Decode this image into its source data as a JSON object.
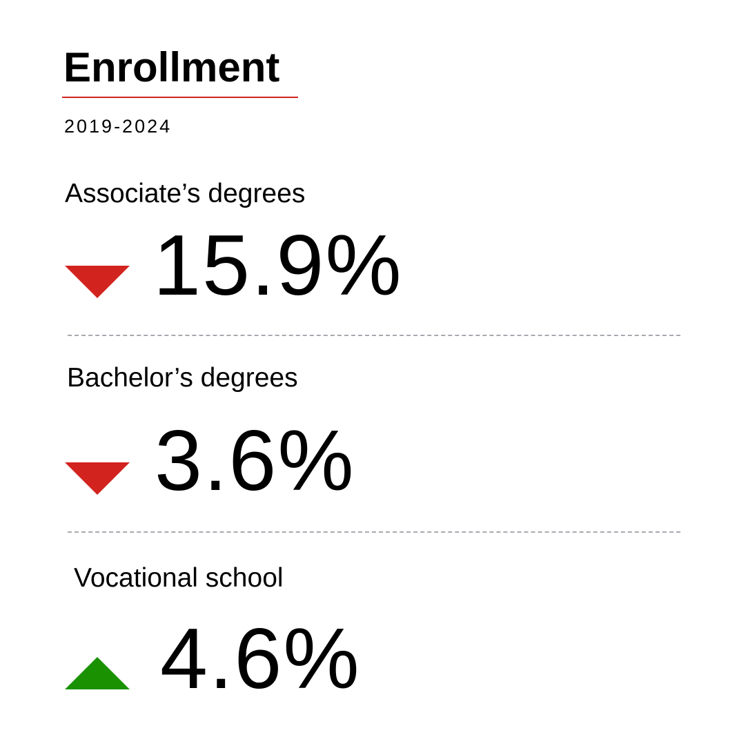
{
  "header": {
    "title": "Enrollment",
    "period": "2019-2024"
  },
  "colors": {
    "accent": "#d2231e",
    "decrease": "#d2231e",
    "increase": "#1a9100",
    "divider": "#a8a8b0"
  },
  "metrics": [
    {
      "label": "Associate’s degrees",
      "value": "15.9%",
      "direction": "down",
      "icon": "triangle-down-icon"
    },
    {
      "label": "Bachelor’s degrees",
      "value": "3.6%",
      "direction": "down",
      "icon": "triangle-down-icon"
    },
    {
      "label": "Vocational school",
      "value": "4.6%",
      "direction": "up",
      "icon": "triangle-up-icon"
    }
  ]
}
